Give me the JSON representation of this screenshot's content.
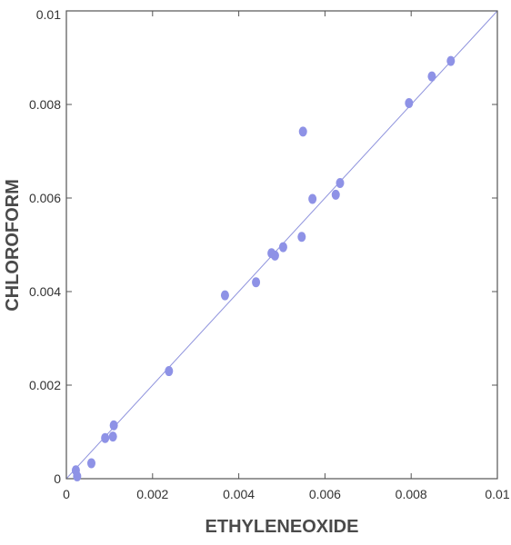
{
  "chart_data": {
    "type": "scatter",
    "title": "",
    "xlabel": "ETHYLENEOXIDE",
    "ylabel": "CHLOROFORM",
    "xlim": [
      0,
      0.01
    ],
    "ylim": [
      0,
      0.01
    ],
    "xticks": [
      0,
      0.002,
      0.004,
      0.006,
      0.008,
      0.01
    ],
    "yticks": [
      0,
      0.002,
      0.004,
      0.006,
      0.008,
      0.01
    ],
    "xtick_labels": [
      "0",
      "0.002",
      "0.004",
      "0.006",
      "0.008",
      "0.01"
    ],
    "ytick_labels": [
      "0",
      "0.002",
      "0.004",
      "0.006",
      "0.008",
      "0.01"
    ],
    "grid": false,
    "legend": "none",
    "colors": {
      "points": "#8e92e6",
      "line": "#8f93dd",
      "axes": "#555555"
    },
    "series": [
      {
        "points": [
          {
            "x": 0.00022,
            "y": 0.00018
          },
          {
            "x": 0.00025,
            "y": 5e-05
          },
          {
            "x": 0.00058,
            "y": 0.00033
          },
          {
            "x": 0.0009,
            "y": 0.00087
          },
          {
            "x": 0.00108,
            "y": 0.0009
          },
          {
            "x": 0.0011,
            "y": 0.00114
          },
          {
            "x": 0.00238,
            "y": 0.0023
          },
          {
            "x": 0.00368,
            "y": 0.00392
          },
          {
            "x": 0.0044,
            "y": 0.0042
          },
          {
            "x": 0.00476,
            "y": 0.00482
          },
          {
            "x": 0.00484,
            "y": 0.00477
          },
          {
            "x": 0.00503,
            "y": 0.00495
          },
          {
            "x": 0.00546,
            "y": 0.00517
          },
          {
            "x": 0.00549,
            "y": 0.00742
          },
          {
            "x": 0.00571,
            "y": 0.00598
          },
          {
            "x": 0.00625,
            "y": 0.00607
          },
          {
            "x": 0.00635,
            "y": 0.00632
          },
          {
            "x": 0.00795,
            "y": 0.00803
          },
          {
            "x": 0.00848,
            "y": 0.0086
          },
          {
            "x": 0.00892,
            "y": 0.00893
          }
        ]
      }
    ],
    "fit_line": {
      "x": [
        0,
        0.01
      ],
      "y": [
        0,
        0.01
      ]
    }
  }
}
